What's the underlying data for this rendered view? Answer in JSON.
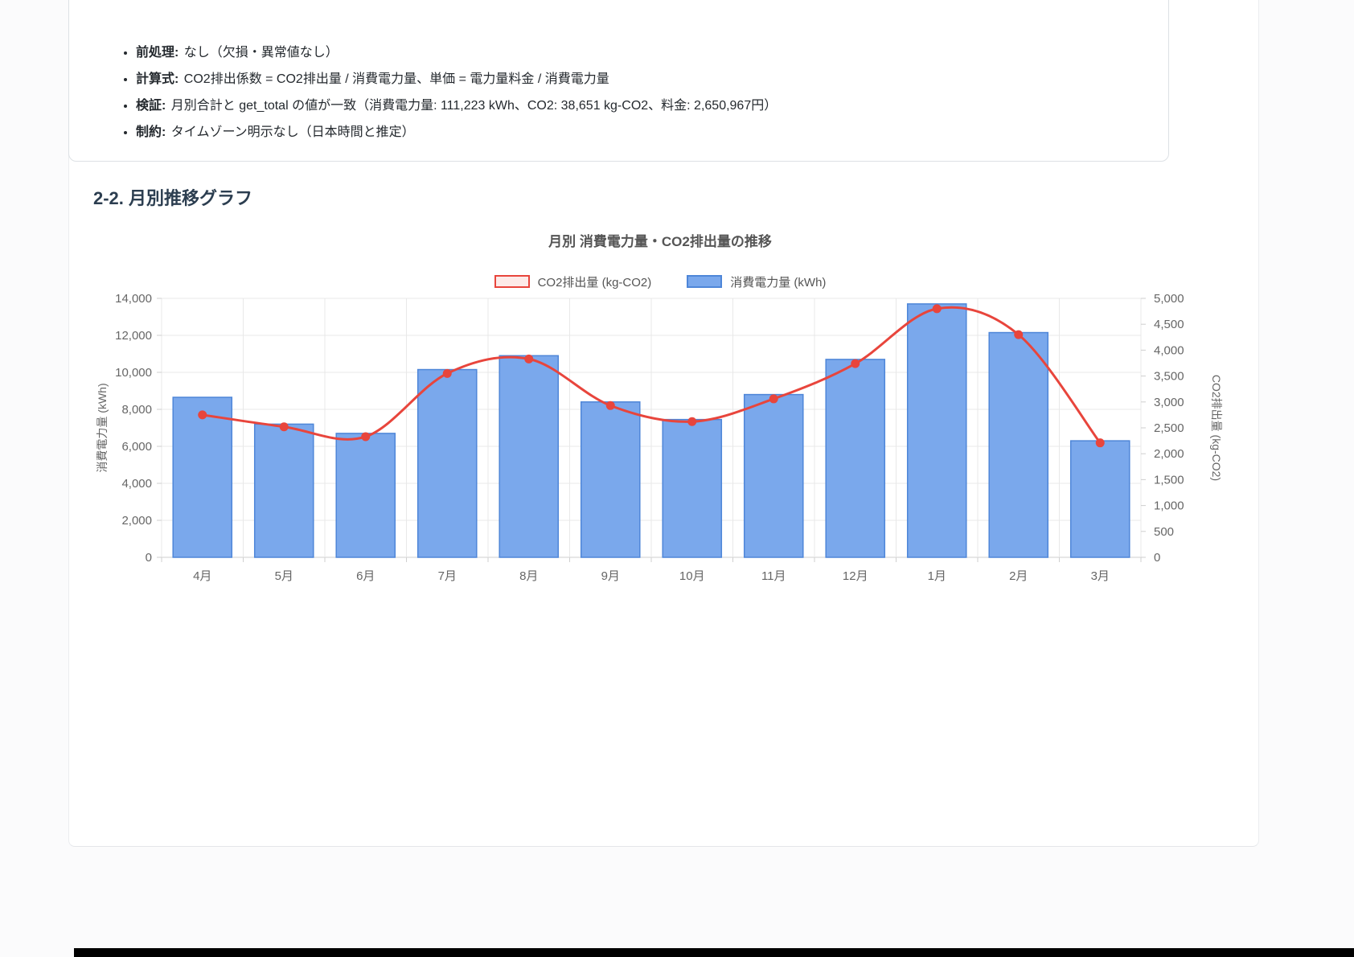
{
  "page": {
    "section_heading": "2-2. 月別推移グラフ"
  },
  "notes_box": {
    "items": [
      {
        "label": "前処理:",
        "text": " なし（欠損・異常値なし）"
      },
      {
        "label": "計算式:",
        "text": " CO2排出係数 = CO2排出量 / 消費電力量、単価 = 電力量料金 / 消費電力量"
      },
      {
        "label": "検証:",
        "text": " 月別合計と get_total の値が一致（消費電力量: 111,223 kWh、CO2: 38,651 kg-CO2、料金: 2,650,967円）"
      },
      {
        "label": "制約:",
        "text": " タイムゾーン明示なし（日本時間と推定）"
      }
    ]
  },
  "chart_data": {
    "type": "bar",
    "subtype": "bar+line combo, dual axis",
    "title": "月別 消費電力量・CO2排出量の推移",
    "categories": [
      "4月",
      "5月",
      "6月",
      "7月",
      "8月",
      "9月",
      "10月",
      "11月",
      "12月",
      "1月",
      "2月",
      "3月"
    ],
    "series": [
      {
        "name": "CO2排出量 (kg-CO2)",
        "type": "line",
        "axis": "right",
        "color": "#e8453c",
        "fill": "#fdeae8",
        "values": [
          2750,
          2520,
          2330,
          3550,
          3830,
          2930,
          2620,
          3060,
          3740,
          4800,
          4300,
          2210
        ]
      },
      {
        "name": "消費電力量 (kWh)",
        "type": "bar",
        "axis": "left",
        "color": "#7aa8ec",
        "border": "#4e86d8",
        "values": [
          8650,
          7200,
          6700,
          10150,
          10900,
          8400,
          7450,
          8800,
          10700,
          13700,
          12150,
          6300
        ]
      }
    ],
    "left_axis": {
      "label": "消費電力量 (kWh)",
      "min": 0,
      "max": 14000,
      "step": 2000
    },
    "right_axis": {
      "label": "CO2排出量 (kg-CO2)",
      "min": 0,
      "max": 5000,
      "step": 500
    },
    "legend_position": "top",
    "grid": true
  }
}
